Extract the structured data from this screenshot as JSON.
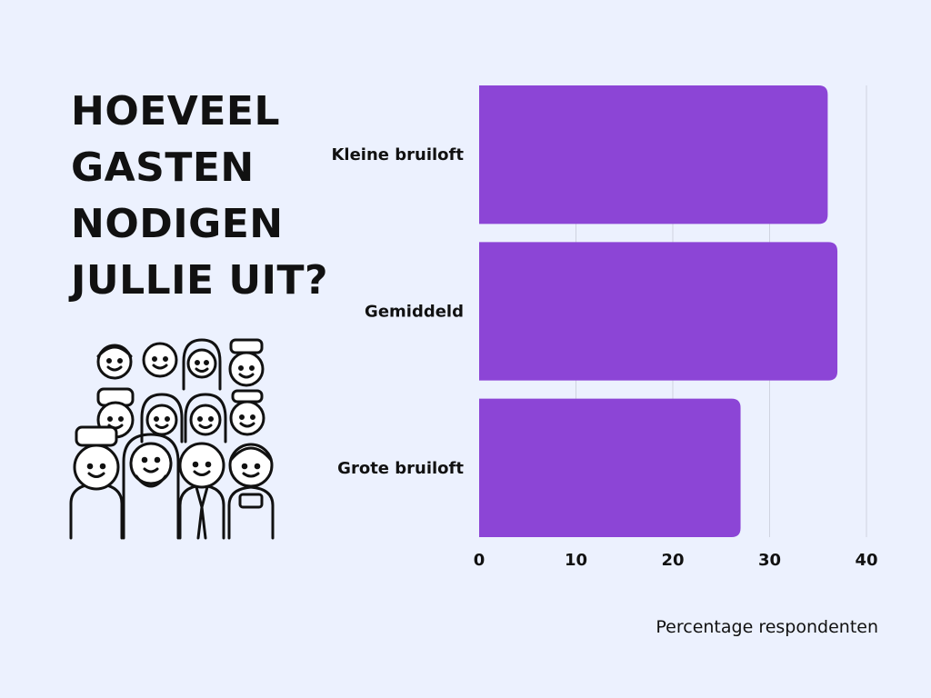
{
  "title_lines": [
    "HOEVEEL",
    "GASTEN",
    "NODIGEN",
    "JULLIE UIT?"
  ],
  "illustration_icon": "group-of-people-icon",
  "colors": {
    "background": "#ecf1fe",
    "bar": "#8c45d6",
    "grid": "#cfd3e0",
    "text": "#111111"
  },
  "chart_data": {
    "type": "bar",
    "orientation": "horizontal",
    "categories": [
      "Kleine bruiloft",
      "Gemiddeld",
      "Grote bruiloft"
    ],
    "values": [
      36,
      37,
      27
    ],
    "xlabel": "Percentage respondenten",
    "ylabel": "",
    "xlim": [
      0,
      40
    ],
    "xticks": [
      0,
      10,
      20,
      30,
      40
    ],
    "grid": true,
    "legend": "none"
  }
}
